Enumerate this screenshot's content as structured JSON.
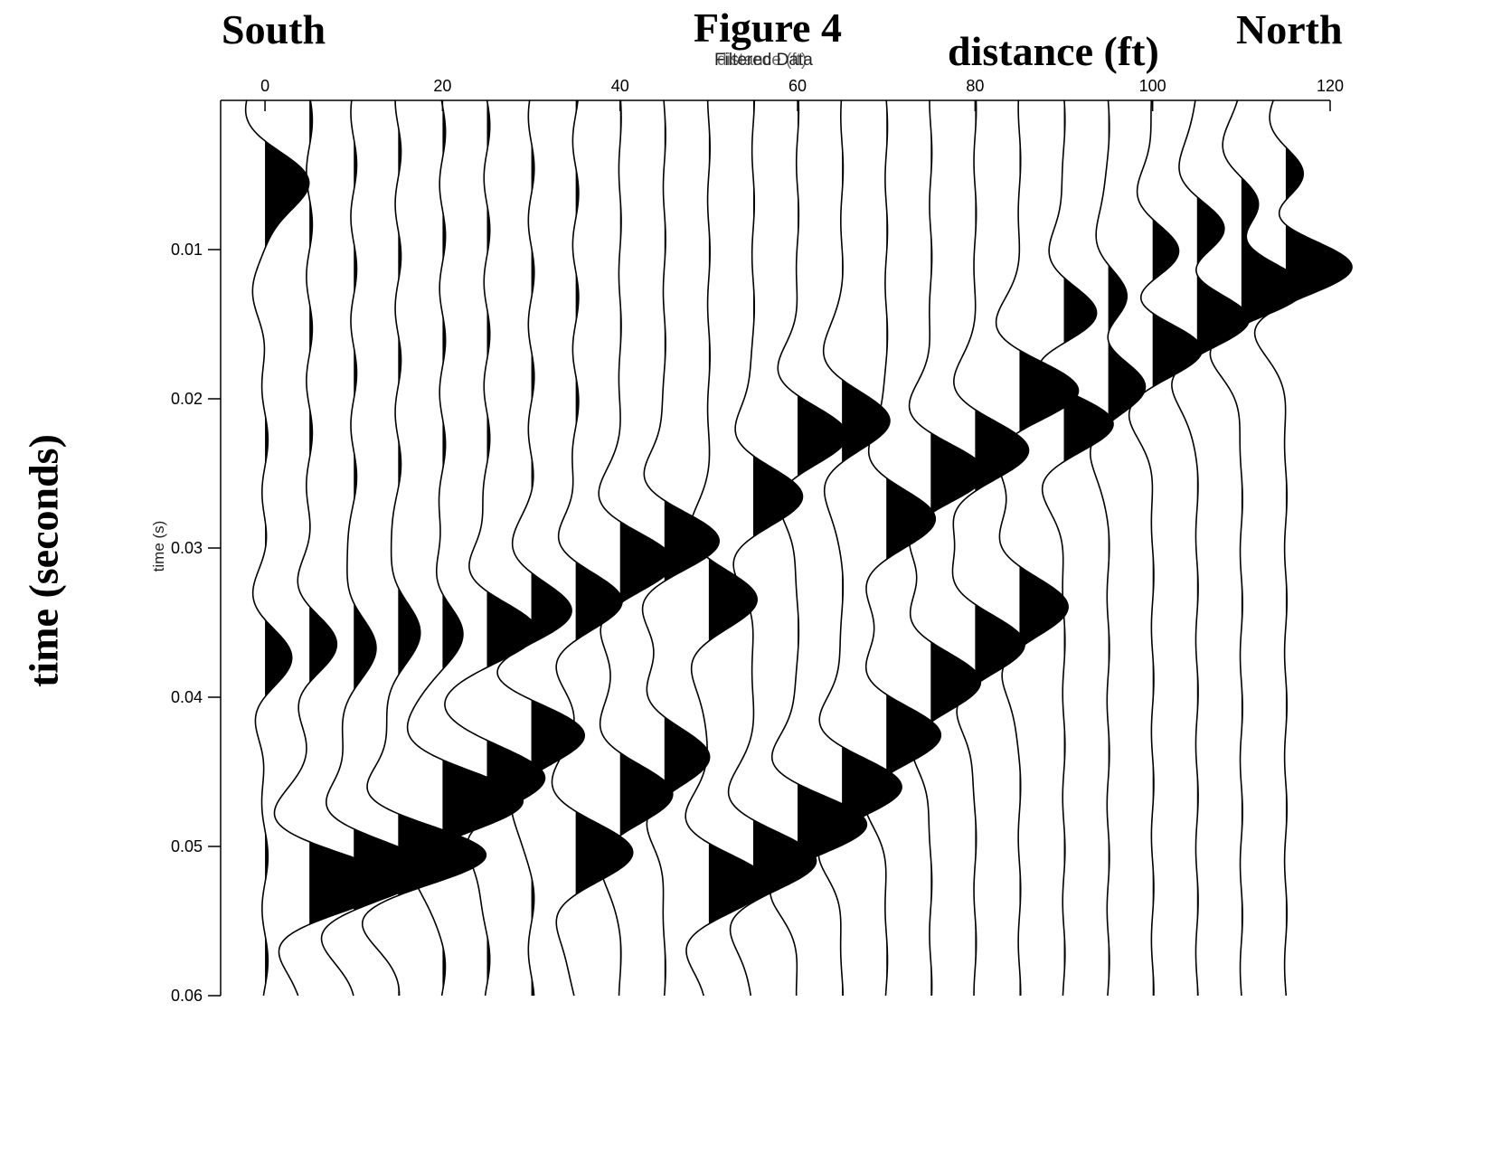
{
  "header": {
    "left_label": "South",
    "title": "Figure 4",
    "right_label": "North",
    "distance_label": "distance (ft)",
    "subtitle_a": "Filtered Data",
    "subtitle_b": "distance (ft)"
  },
  "side": {
    "time_label_big": "time (seconds)",
    "time_label_small": "time (s)"
  },
  "colors": {
    "trace": "#000000",
    "fill": "#000000",
    "background": "#ffffff"
  },
  "chart_data": {
    "type": "seismic-wiggle",
    "title": "Filtered Data",
    "xlabel": "distance (ft)",
    "ylabel": "time (s)",
    "x_axis_position": "top",
    "xlim": [
      -5,
      120
    ],
    "ylim": [
      0.0,
      0.06
    ],
    "y_inverted": true,
    "xticks": [
      0,
      20,
      40,
      60,
      80,
      100,
      120
    ],
    "yticks": [
      0.01,
      0.02,
      0.03,
      0.04,
      0.05,
      0.06
    ],
    "ytick_labels": [
      "0.01",
      "0.02",
      "0.03",
      "0.04",
      "0.05",
      "0.06"
    ],
    "grid": false,
    "fill_positive": true,
    "trace_offsets_ft": [
      0,
      5,
      10,
      15,
      20,
      25,
      30,
      35,
      40,
      45,
      50,
      55,
      60,
      65,
      70,
      75,
      80,
      85,
      90,
      95,
      100,
      105,
      110,
      115
    ],
    "wavelets": [
      [
        [
          0.0054,
          0.55
        ],
        [
          0.0375,
          0.25
        ],
        [
          0.0095,
          0.2
        ]
      ],
      [
        [
          0.0525,
          0.9
        ],
        [
          0.0365,
          0.25
        ]
      ],
      [
        [
          0.0515,
          0.8
        ],
        [
          0.0365,
          0.25
        ]
      ],
      [
        [
          0.0505,
          0.9
        ],
        [
          0.0355,
          0.25
        ]
      ],
      [
        [
          0.047,
          0.85
        ],
        [
          0.0355,
          0.2
        ]
      ],
      [
        [
          0.0455,
          0.6
        ],
        [
          0.0355,
          0.5
        ]
      ],
      [
        [
          0.0425,
          0.6
        ],
        [
          0.0345,
          0.45
        ]
      ],
      [
        [
          0.0505,
          0.6
        ],
        [
          0.0335,
          0.45
        ]
      ],
      [
        [
          0.0465,
          0.55
        ],
        [
          0.031,
          0.55
        ]
      ],
      [
        [
          0.044,
          0.45
        ],
        [
          0.0295,
          0.55
        ]
      ],
      [
        [
          0.0525,
          0.6
        ],
        [
          0.0335,
          0.5
        ]
      ],
      [
        [
          0.051,
          0.65
        ],
        [
          0.0265,
          0.5
        ]
      ],
      [
        [
          0.0485,
          0.7
        ],
        [
          0.0225,
          0.5
        ]
      ],
      [
        [
          0.046,
          0.6
        ],
        [
          0.0215,
          0.5
        ]
      ],
      [
        [
          0.0425,
          0.55
        ],
        [
          0.028,
          0.5
        ]
      ],
      [
        [
          0.025,
          0.55
        ],
        [
          0.039,
          0.5
        ]
      ],
      [
        [
          0.0235,
          0.55
        ],
        [
          0.0365,
          0.5
        ]
      ],
      [
        [
          0.0195,
          0.6
        ],
        [
          0.034,
          0.5
        ]
      ],
      [
        [
          0.0215,
          0.55
        ],
        [
          0.0145,
          0.4
        ]
      ],
      [
        [
          0.019,
          0.5
        ],
        [
          0.0135,
          0.35
        ]
      ],
      [
        [
          0.0165,
          0.6
        ],
        [
          0.0105,
          0.4
        ]
      ],
      [
        [
          0.0145,
          0.7
        ],
        [
          0.009,
          0.5
        ]
      ],
      [
        [
          0.0125,
          0.8
        ],
        [
          0.0075,
          0.45
        ]
      ],
      [
        [
          0.011,
          0.8
        ],
        [
          0.0055,
          0.4
        ]
      ]
    ]
  }
}
